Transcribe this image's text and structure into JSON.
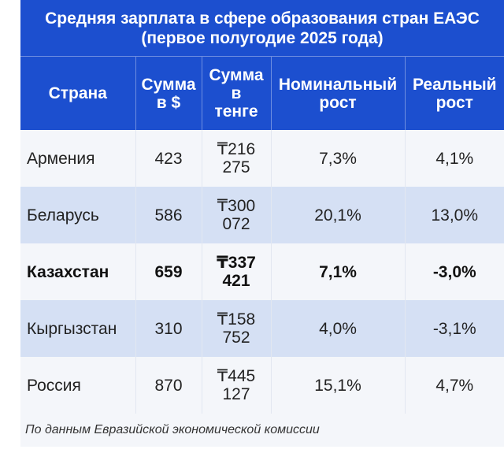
{
  "chart_data": {
    "type": "table",
    "title_line1": "Средняя зарплата в сфере образования стран ЕАЭС",
    "title_line2": "(первое полугодие 2025 года)",
    "columns": [
      {
        "line1": "Страна",
        "line2": "",
        "line3": ""
      },
      {
        "line1": "Сумма",
        "line2": "в $",
        "line3": ""
      },
      {
        "line1": "Сумма",
        "line2": "в",
        "line3": "тенге"
      },
      {
        "line1": "Номинальный",
        "line2": "рост",
        "line3": ""
      },
      {
        "line1": "Реальный",
        "line2": "рост",
        "line3": ""
      }
    ],
    "rows": [
      {
        "country": "Армения",
        "usd": "423",
        "kzt_line1": "₸216",
        "kzt_line2": "275",
        "nominal": "7,3%",
        "real": "4,1%",
        "highlight": false
      },
      {
        "country": "Беларусь",
        "usd": "586",
        "kzt_line1": "₸300",
        "kzt_line2": "072",
        "nominal": "20,1%",
        "real": "13,0%",
        "highlight": false
      },
      {
        "country": "Казахстан",
        "usd": "659",
        "kzt_line1": "₸337",
        "kzt_line2": "421",
        "nominal": "7,1%",
        "real": "-3,0%",
        "highlight": true
      },
      {
        "country": "Кыргызстан",
        "usd": "310",
        "kzt_line1": "₸158",
        "kzt_line2": "752",
        "nominal": "4,0%",
        "real": "-3,1%",
        "highlight": false
      },
      {
        "country": "Россия",
        "usd": "870",
        "kzt_line1": "₸445",
        "kzt_line2": "127",
        "nominal": "15,1%",
        "real": "4,7%",
        "highlight": false
      }
    ],
    "source": "По данным Евразийской экономической комиссии"
  },
  "colors": {
    "header_bg": "#1c4fcf",
    "row_light": "#f4f6fa",
    "row_dark": "#d5e0f4"
  }
}
